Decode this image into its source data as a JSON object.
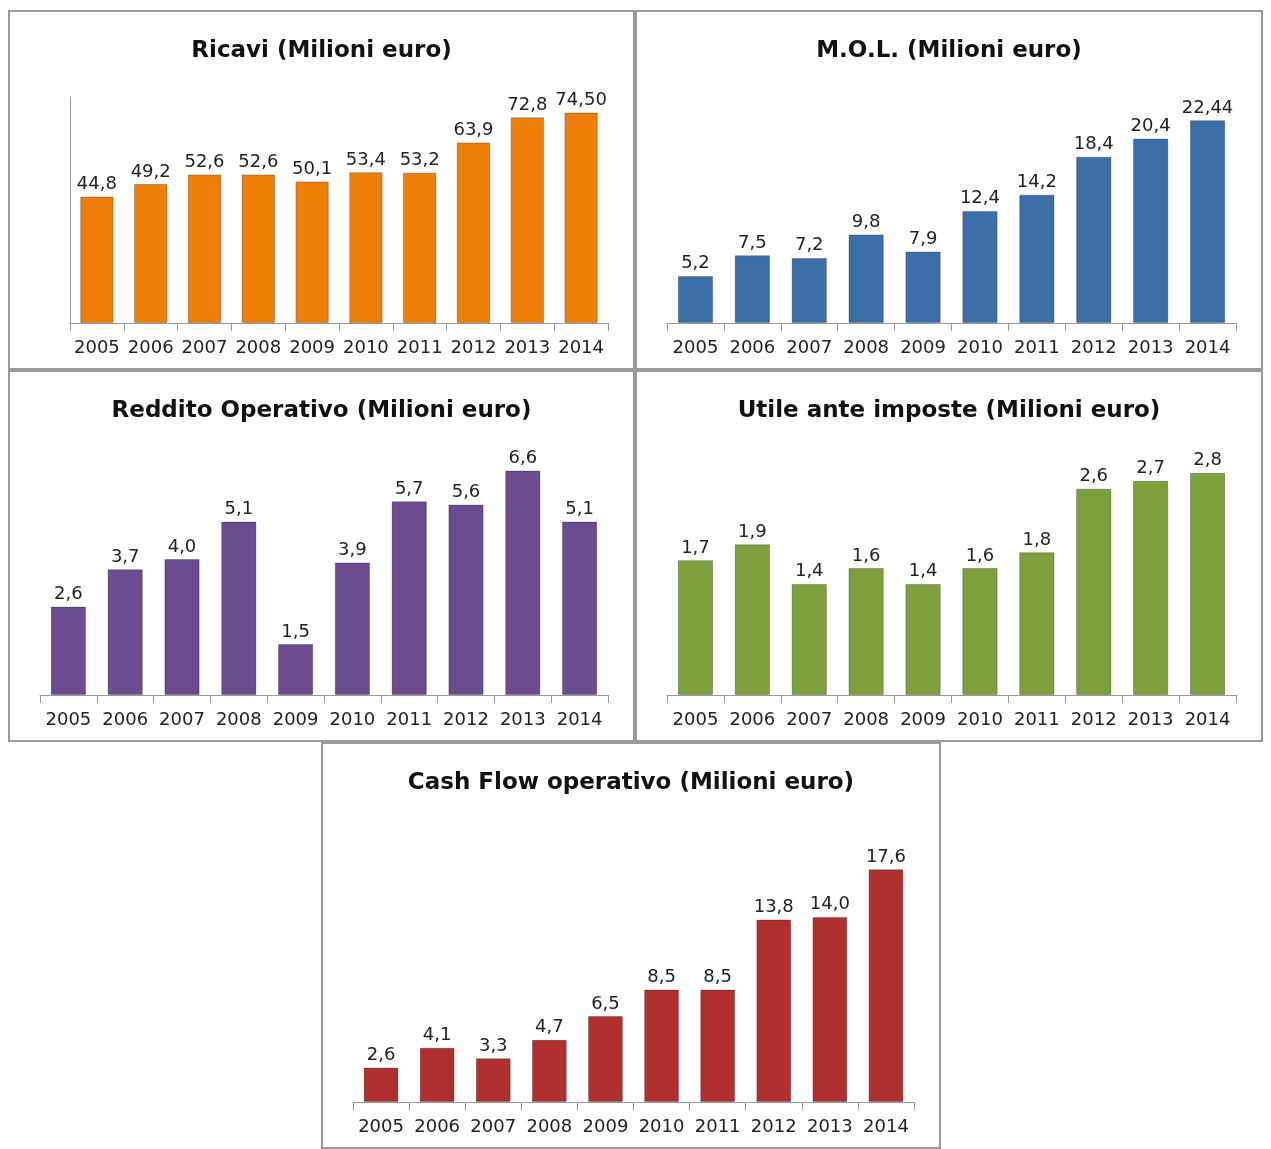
{
  "chart_data": [
    {
      "type": "bar",
      "title": "Ricavi (Milioni euro)",
      "categories": [
        "2005",
        "2006",
        "2007",
        "2008",
        "2009",
        "2010",
        "2011",
        "2012",
        "2013",
        "2014"
      ],
      "values": [
        44.8,
        49.2,
        52.6,
        52.6,
        50.1,
        53.4,
        53.2,
        63.9,
        72.8,
        74.5
      ],
      "value_labels": [
        "44,8",
        "49,2",
        "52,6",
        "52,6",
        "50,1",
        "53,4",
        "53,2",
        "63,9",
        "72,8",
        "74,50"
      ],
      "color": "#f07f09",
      "ylim": [
        0,
        80
      ],
      "tick_labels": "x",
      "grid": false
    },
    {
      "type": "bar",
      "title": "M.O.L. (Milioni euro)",
      "categories": [
        "2005",
        "2006",
        "2007",
        "2008",
        "2009",
        "2010",
        "2011",
        "2012",
        "2013",
        "2014"
      ],
      "values": [
        5.2,
        7.5,
        7.2,
        9.8,
        7.9,
        12.4,
        14.2,
        18.4,
        20.4,
        22.44
      ],
      "value_labels": [
        "5,2",
        "7,5",
        "7,2",
        "9,8",
        "7,9",
        "12,4",
        "14,2",
        "18,4",
        "20,4",
        "22,44"
      ],
      "color": "#3c6ea8",
      "tick_labels": "x",
      "grid": false
    },
    {
      "type": "bar",
      "title": "Reddito Operativo (Milioni euro)",
      "categories": [
        "2005",
        "2006",
        "2007",
        "2008",
        "2009",
        "2010",
        "2011",
        "2012",
        "2013",
        "2014"
      ],
      "values": [
        2.6,
        3.7,
        4.0,
        5.1,
        1.5,
        3.9,
        5.7,
        5.6,
        6.6,
        5.1
      ],
      "value_labels": [
        "2,6",
        "3,7",
        "4,0",
        "5,1",
        "1,5",
        "3,9",
        "5,7",
        "5,6",
        "6,6",
        "5,1"
      ],
      "color": "#6a4c8f",
      "tick_labels": "x",
      "grid": false
    },
    {
      "type": "bar",
      "title": "Utile ante imposte (Milioni euro)",
      "categories": [
        "2005",
        "2006",
        "2007",
        "2008",
        "2009",
        "2010",
        "2011",
        "2012",
        "2013",
        "2014"
      ],
      "values": [
        1.7,
        1.9,
        1.4,
        1.6,
        1.4,
        1.6,
        1.8,
        2.6,
        2.7,
        2.8
      ],
      "value_labels": [
        "1,7",
        "1,9",
        "1,4",
        "1,6",
        "1,4",
        "1,6",
        "1,8",
        "2,6",
        "2,7",
        "2,8"
      ],
      "color": "#7f9f3c",
      "tick_labels": "x",
      "grid": false
    },
    {
      "type": "bar",
      "title": "Cash Flow operativo (Milioni euro)",
      "categories": [
        "2005",
        "2006",
        "2007",
        "2008",
        "2009",
        "2010",
        "2011",
        "2012",
        "2013",
        "2014"
      ],
      "values": [
        2.6,
        4.1,
        3.3,
        4.7,
        6.5,
        8.5,
        8.5,
        13.8,
        14.0,
        17.6
      ],
      "value_labels": [
        "2,6",
        "4,1",
        "3,3",
        "4,7",
        "6,5",
        "8,5",
        "8,5",
        "13,8",
        "14,0",
        "17,6"
      ],
      "color": "#b03030",
      "tick_labels": "x",
      "grid": false
    }
  ]
}
